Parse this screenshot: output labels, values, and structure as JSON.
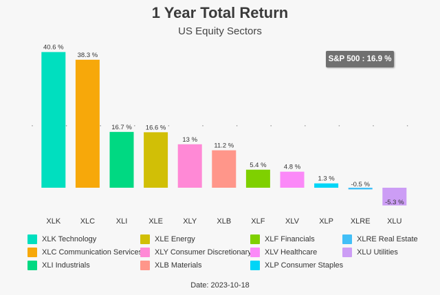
{
  "chart_data": {
    "type": "bar",
    "title": "1 Year Total Return",
    "subtitle": "US Equity Sectors",
    "categories": [
      "XLK",
      "XLC",
      "XLI",
      "XLE",
      "XLY",
      "XLB",
      "XLF",
      "XLV",
      "XLP",
      "XLRE",
      "XLU"
    ],
    "values": [
      40.6,
      38.3,
      16.7,
      16.6,
      13,
      11.2,
      5.4,
      4.8,
      1.3,
      -0.5,
      -5.3
    ],
    "data_labels": [
      "40.6 %",
      "38.3 %",
      "16.7 %",
      "16.6 %",
      "13 %",
      "11.2 %",
      "5.4 %",
      "4.8 %",
      "1.3 %",
      "-0.5 %",
      "-5.3 %"
    ],
    "colors": [
      "#00dfbf",
      "#f7a80a",
      "#00d982",
      "#d1bf06",
      "#ff89d6",
      "#ff968a",
      "#7fd000",
      "#fb89f8",
      "#00d5f7",
      "#42bff7",
      "#cc9df5"
    ],
    "ylim": [
      -5.3,
      40.6
    ],
    "grid": "dotted horizontal reference line",
    "annotation": "S&P 500 : 16.9 %",
    "legend_placement": "bottom",
    "legend": [
      "XLK Technology",
      "XLC  Communication Services",
      "XLI Industrials",
      "XLE Energy",
      "XLY Consumer Discretionary",
      "XLB Materials",
      "XLF Financials",
      "XLV Healthcare",
      "XLP Consumer Staples",
      "XLRE Real Estate",
      "XLU Utilities"
    ],
    "footer": "Date: 2023-10-18"
  }
}
